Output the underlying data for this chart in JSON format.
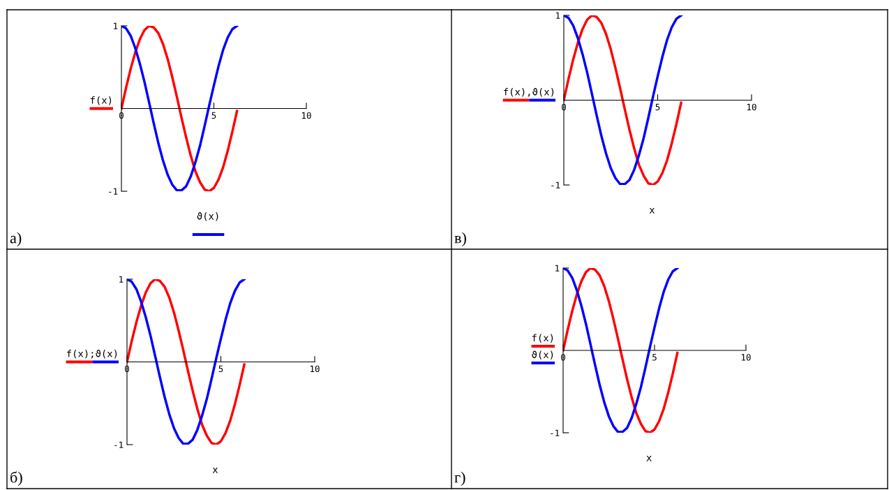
{
  "chart_data": [
    {
      "type": "line",
      "ylabel": "f(x)",
      "xlabel": "ϑ(x)",
      "annotations": [
        "а)"
      ],
      "xlim": [
        0,
        10
      ],
      "ylim": [
        -1,
        1
      ],
      "xticks": [
        0,
        5,
        10
      ],
      "yticks": [
        -1,
        1
      ],
      "x": [
        0,
        0.25,
        0.5,
        0.75,
        1,
        1.25,
        1.5,
        1.75,
        2,
        2.25,
        2.5,
        2.75,
        3,
        3.25,
        3.5,
        3.75,
        4,
        4.25,
        4.5,
        4.75,
        5,
        5.25,
        5.5,
        5.75,
        6,
        6.25
      ],
      "series": [
        {
          "color": "#ff0000",
          "values": [
            0,
            0.25,
            0.48,
            0.68,
            0.84,
            0.95,
            1.0,
            0.98,
            0.91,
            0.78,
            0.6,
            0.38,
            0.14,
            -0.11,
            -0.35,
            -0.57,
            -0.76,
            -0.89,
            -0.98,
            -1.0,
            -0.96,
            -0.86,
            -0.71,
            -0.51,
            -0.28,
            -0.03
          ]
        },
        {
          "color": "#0000ff",
          "values": [
            1,
            0.97,
            0.88,
            0.73,
            0.54,
            0.32,
            0.07,
            -0.18,
            -0.42,
            -0.63,
            -0.8,
            -0.92,
            -0.99,
            -0.99,
            -0.94,
            -0.82,
            -0.65,
            -0.45,
            -0.21,
            0.04,
            0.28,
            0.51,
            0.71,
            0.86,
            0.96,
            1.0
          ]
        }
      ]
    },
    {
      "type": "line",
      "ylabel": "f(x),ϑ(x)",
      "xlabel": "x",
      "annotations": [
        "в)"
      ],
      "xlim": [
        0,
        10
      ],
      "ylim": [
        -1,
        1
      ],
      "xticks": [
        0,
        5,
        10
      ],
      "yticks": [
        -1,
        1
      ],
      "x": [
        0,
        0.25,
        0.5,
        0.75,
        1,
        1.25,
        1.5,
        1.75,
        2,
        2.25,
        2.5,
        2.75,
        3,
        3.25,
        3.5,
        3.75,
        4,
        4.25,
        4.5,
        4.75,
        5,
        5.25,
        5.5,
        5.75,
        6,
        6.25
      ],
      "series": [
        {
          "color": "#ff0000",
          "values": [
            0,
            0.25,
            0.48,
            0.68,
            0.84,
            0.95,
            1.0,
            0.98,
            0.91,
            0.78,
            0.6,
            0.38,
            0.14,
            -0.11,
            -0.35,
            -0.57,
            -0.76,
            -0.89,
            -0.98,
            -1.0,
            -0.96,
            -0.86,
            -0.71,
            -0.51,
            -0.28,
            -0.03
          ]
        },
        {
          "color": "#0000ff",
          "values": [
            1,
            0.97,
            0.88,
            0.73,
            0.54,
            0.32,
            0.07,
            -0.18,
            -0.42,
            -0.63,
            -0.8,
            -0.92,
            -0.99,
            -0.99,
            -0.94,
            -0.82,
            -0.65,
            -0.45,
            -0.21,
            0.04,
            0.28,
            0.51,
            0.71,
            0.86,
            0.96,
            1.0
          ]
        }
      ]
    },
    {
      "type": "line",
      "ylabel": "f(x);ϑ(x)",
      "xlabel": "x",
      "annotations": [
        "б)"
      ],
      "xlim": [
        0,
        10
      ],
      "ylim": [
        -1,
        1
      ],
      "xticks": [
        0,
        5,
        10
      ],
      "yticks": [
        -1,
        1
      ],
      "x": [
        0,
        0.25,
        0.5,
        0.75,
        1,
        1.25,
        1.5,
        1.75,
        2,
        2.25,
        2.5,
        2.75,
        3,
        3.25,
        3.5,
        3.75,
        4,
        4.25,
        4.5,
        4.75,
        5,
        5.25,
        5.5,
        5.75,
        6,
        6.25
      ],
      "series": [
        {
          "color": "#ff0000",
          "values": [
            0,
            0.25,
            0.48,
            0.68,
            0.84,
            0.95,
            1.0,
            0.98,
            0.91,
            0.78,
            0.6,
            0.38,
            0.14,
            -0.11,
            -0.35,
            -0.57,
            -0.76,
            -0.89,
            -0.98,
            -1.0,
            -0.96,
            -0.86,
            -0.71,
            -0.51,
            -0.28,
            -0.03
          ]
        },
        {
          "color": "#0000ff",
          "values": [
            1,
            0.97,
            0.88,
            0.73,
            0.54,
            0.32,
            0.07,
            -0.18,
            -0.42,
            -0.63,
            -0.8,
            -0.92,
            -0.99,
            -0.99,
            -0.94,
            -0.82,
            -0.65,
            -0.45,
            -0.21,
            0.04,
            0.28,
            0.51,
            0.71,
            0.86,
            0.96,
            1.0
          ]
        }
      ]
    },
    {
      "type": "line",
      "ylabel": "f(x)\nϑ(x)",
      "xlabel": "x",
      "annotations": [
        "г)"
      ],
      "xlim": [
        0,
        10
      ],
      "ylim": [
        -1,
        1
      ],
      "xticks": [
        0,
        5,
        10
      ],
      "yticks": [
        -1,
        1
      ],
      "x": [
        0,
        0.25,
        0.5,
        0.75,
        1,
        1.25,
        1.5,
        1.75,
        2,
        2.25,
        2.5,
        2.75,
        3,
        3.25,
        3.5,
        3.75,
        4,
        4.25,
        4.5,
        4.75,
        5,
        5.25,
        5.5,
        5.75,
        6,
        6.25
      ],
      "series": [
        {
          "color": "#ff0000",
          "values": [
            0,
            0.25,
            0.48,
            0.68,
            0.84,
            0.95,
            1.0,
            0.98,
            0.91,
            0.78,
            0.6,
            0.38,
            0.14,
            -0.11,
            -0.35,
            -0.57,
            -0.76,
            -0.89,
            -0.98,
            -1.0,
            -0.96,
            -0.86,
            -0.71,
            -0.51,
            -0.28,
            -0.03
          ]
        },
        {
          "color": "#0000ff",
          "values": [
            1,
            0.97,
            0.88,
            0.73,
            0.54,
            0.32,
            0.07,
            -0.18,
            -0.42,
            -0.63,
            -0.8,
            -0.92,
            -0.99,
            -0.99,
            -0.94,
            -0.82,
            -0.65,
            -0.45,
            -0.21,
            0.04,
            0.28,
            0.51,
            0.71,
            0.86,
            0.96,
            1.0
          ]
        }
      ]
    }
  ]
}
